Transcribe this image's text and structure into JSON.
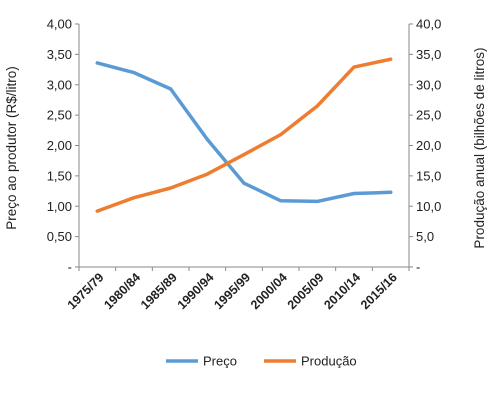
{
  "chart_data": {
    "type": "line",
    "categories": [
      "1975/79",
      "1980/84",
      "1985/89",
      "1990/94",
      "1995/99",
      "2000/04",
      "2005/09",
      "2010/14",
      "2015/16"
    ],
    "series": [
      {
        "name": "Preço",
        "axis": "left",
        "color": "#5B9BD5",
        "values": [
          3.36,
          3.2,
          2.93,
          2.1,
          1.38,
          1.09,
          1.08,
          1.21,
          1.23
        ]
      },
      {
        "name": "Produção",
        "axis": "right",
        "color": "#ED7D31",
        "values": [
          9.2,
          11.4,
          13.0,
          15.3,
          18.5,
          21.8,
          26.5,
          32.9,
          34.2
        ]
      }
    ],
    "ylabel_left": "Preço ao produtor (R$/litro)",
    "ylabel_right": "Produção anual (bilhões de litros)",
    "ylim_left": [
      0,
      4.0
    ],
    "ylim_right": [
      0,
      40.0
    ],
    "yticks_left": [
      "-",
      "0,50",
      "1,00",
      "1,50",
      "2,00",
      "2,50",
      "3,00",
      "3,50",
      "4,00"
    ],
    "yticks_right": [
      "-",
      "5,0",
      "10,0",
      "15,0",
      "20,0",
      "25,0",
      "30,0",
      "35,0",
      "40,0"
    ],
    "grid": false,
    "legend_position": "bottom"
  }
}
